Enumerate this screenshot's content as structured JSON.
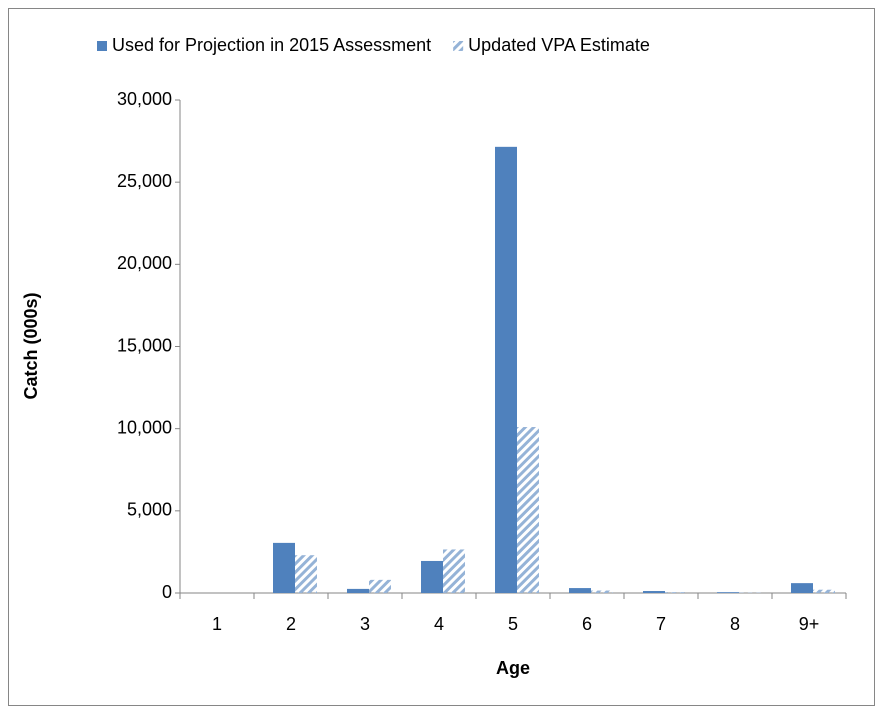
{
  "chart_data": {
    "type": "bar",
    "categories": [
      "1",
      "2",
      "3",
      "4",
      "5",
      "6",
      "7",
      "8",
      "9+"
    ],
    "series": [
      {
        "name": "Used for Projection in 2015 Assessment",
        "color": "#4f81bd",
        "hatch": false,
        "values": [
          0,
          3050,
          250,
          1950,
          27150,
          300,
          120,
          50,
          600
        ]
      },
      {
        "name": "Updated VPA Estimate",
        "color": "#95b3d7",
        "hatch": true,
        "values": [
          0,
          2300,
          800,
          2650,
          10100,
          150,
          50,
          20,
          200
        ]
      }
    ],
    "x_label": "Age",
    "y_label": "Catch (000s)",
    "ylim": [
      0,
      30000
    ],
    "yticks": [
      0,
      {
        "value": 5000,
        "label": "5,000"
      },
      {
        "value": 10000,
        "label": "10,000"
      },
      {
        "value": 15000,
        "label": "15,000"
      },
      {
        "value": 20000,
        "label": "20,000"
      },
      {
        "value": 25000,
        "label": "25,000"
      },
      {
        "value": 30000,
        "label": "30,000"
      }
    ],
    "grid": false,
    "legend": "top"
  }
}
